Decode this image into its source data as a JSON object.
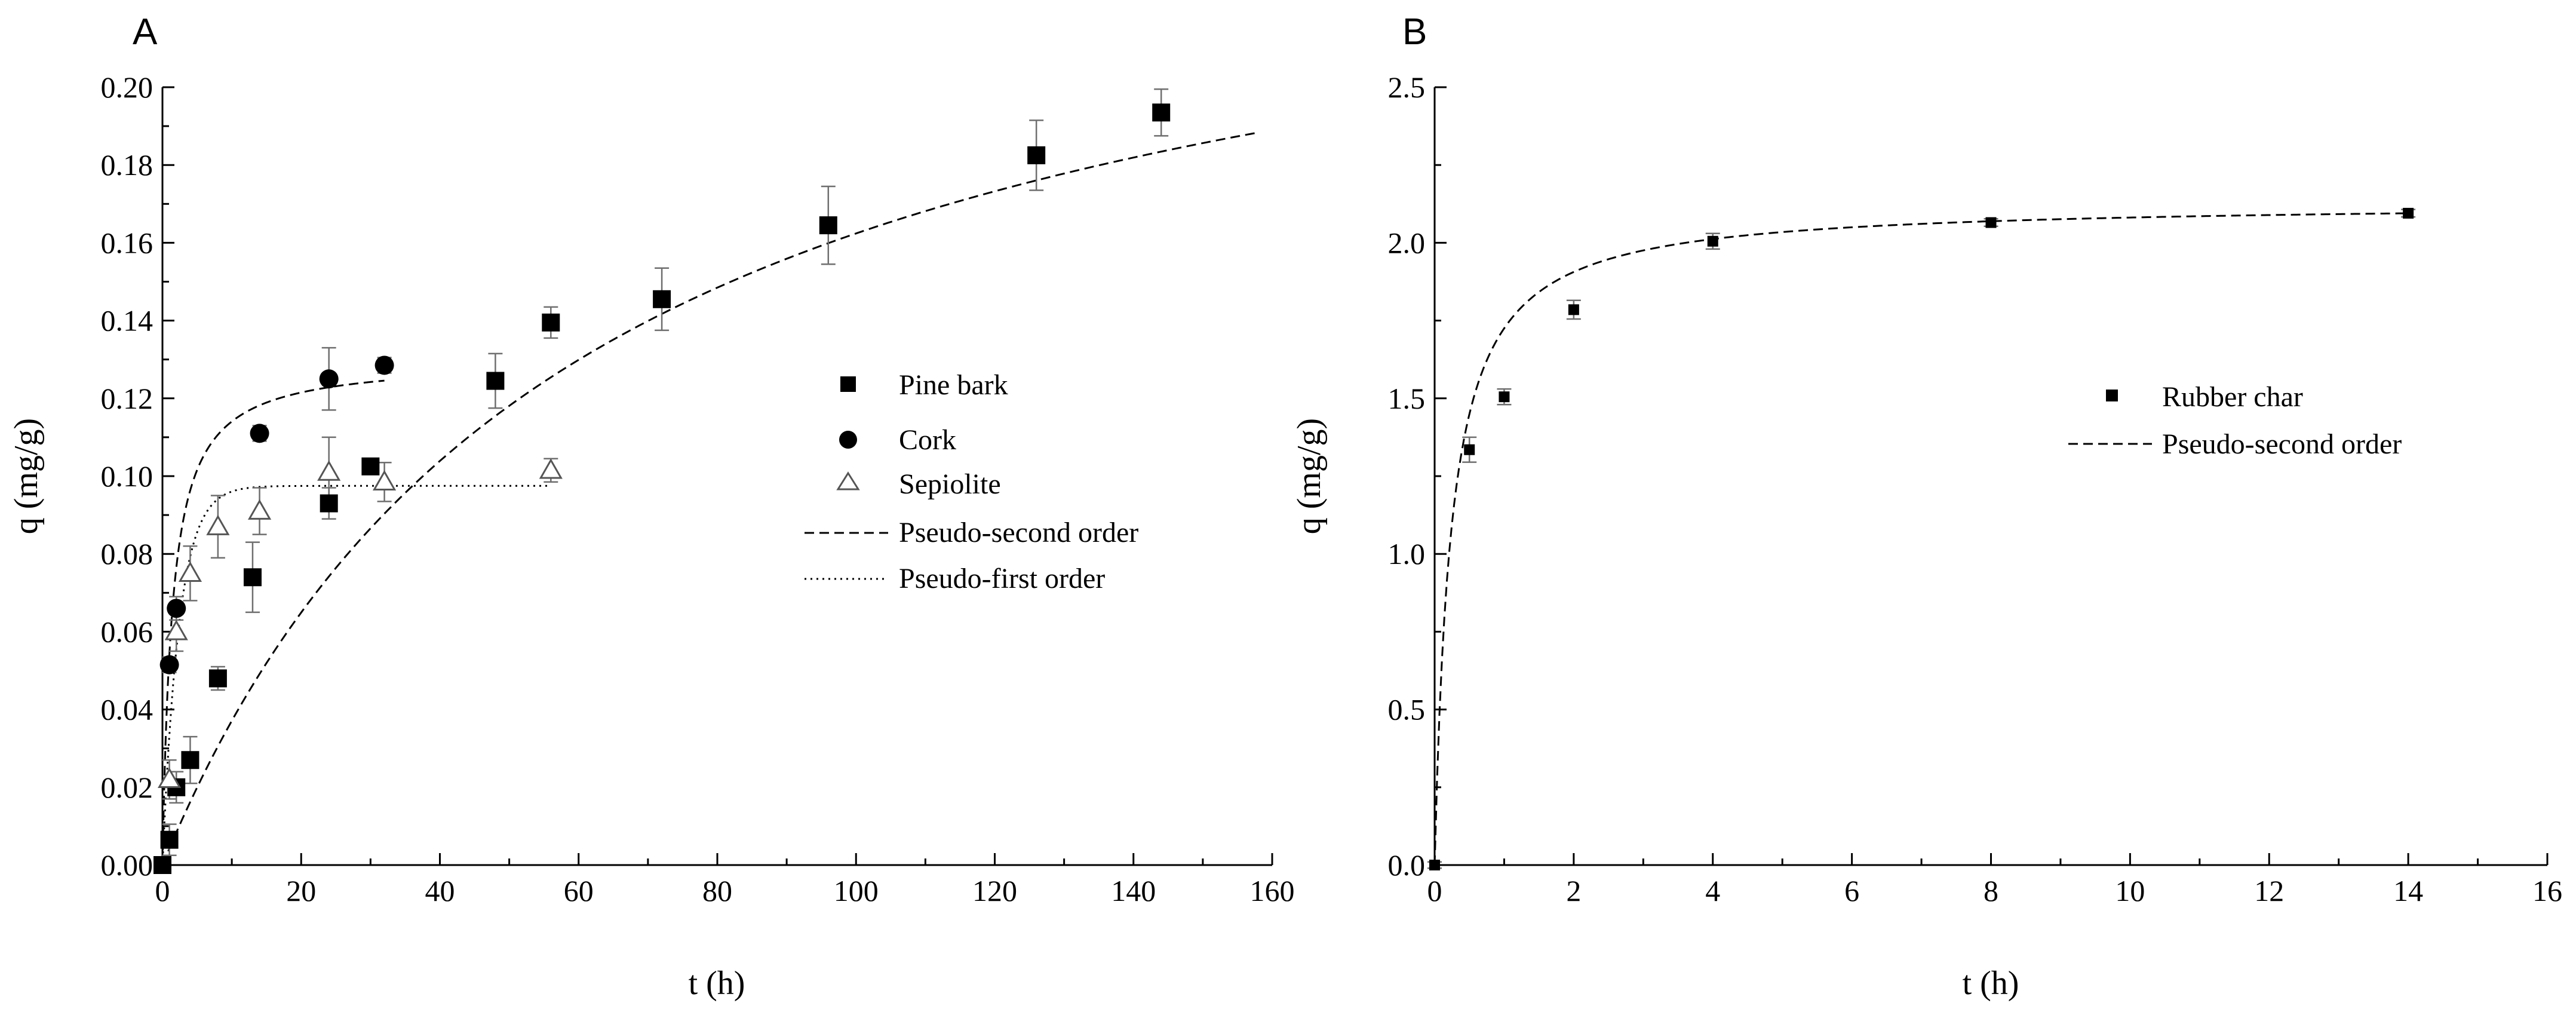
{
  "chart_data": [
    {
      "type": "scatter",
      "panel": "A",
      "xlabel": "t (h)",
      "ylabel": "q (mg/g)",
      "xlim": [
        0,
        160
      ],
      "ylim": [
        0,
        0.2
      ],
      "xticks": [
        0,
        20,
        40,
        60,
        80,
        100,
        120,
        140,
        160
      ],
      "yticks": [
        0.0,
        0.02,
        0.04,
        0.06,
        0.08,
        0.1,
        0.12,
        0.14,
        0.16,
        0.18,
        0.2
      ],
      "ytick_decimals": 2,
      "grid": false,
      "legend_position": "right-middle",
      "series": [
        {
          "name": "Pine bark",
          "marker": "square",
          "color": "#000000",
          "x": [
            0,
            1,
            2,
            4,
            8,
            13,
            24,
            30,
            48,
            56,
            72,
            96,
            126,
            144
          ],
          "y": [
            0.0,
            0.0065,
            0.02,
            0.027,
            0.048,
            0.074,
            0.093,
            0.1025,
            0.1245,
            0.1395,
            0.1455,
            0.1645,
            0.1825,
            0.1935
          ],
          "err": [
            0.001,
            0.004,
            0.004,
            0.006,
            0.003,
            0.009,
            0.004,
            0.002,
            0.007,
            0.004,
            0.008,
            0.01,
            0.009,
            0.006
          ]
        },
        {
          "name": "Cork",
          "marker": "circle",
          "color": "#000000",
          "x": [
            1,
            2,
            14,
            24,
            32
          ],
          "y": [
            0.0515,
            0.066,
            0.111,
            0.125,
            0.1285
          ],
          "err": [
            0.002,
            0.003,
            0.002,
            0.008,
            0.002
          ]
        },
        {
          "name": "Sepiolite",
          "marker": "triangle-open",
          "color": "#000000",
          "x": [
            1,
            2,
            4,
            8,
            14,
            24,
            32,
            56
          ],
          "y": [
            0.022,
            0.06,
            0.075,
            0.087,
            0.091,
            0.101,
            0.0985,
            0.1015
          ],
          "err": [
            0.005,
            0.005,
            0.007,
            0.008,
            0.006,
            0.009,
            0.005,
            0.003
          ]
        }
      ],
      "fits": [
        {
          "name": "Pseudo-second order",
          "style": "dashed",
          "applies_to": "Pine bark",
          "model": "pso",
          "qe": 0.26,
          "k": 0.064,
          "x_range": [
            0,
            158
          ]
        },
        {
          "name": "Pseudo-second order",
          "style": "dashed",
          "applies_to": "Cork",
          "model": "pso",
          "qe": 0.13,
          "k": 5.5,
          "x_range": [
            0,
            32
          ]
        },
        {
          "name": "Pseudo-first order",
          "style": "dotted",
          "applies_to": "Sepiolite",
          "model": "pfo",
          "qe": 0.0975,
          "k": 0.42,
          "x_range": [
            0,
            56
          ]
        }
      ],
      "legend": [
        {
          "label": "Pine bark",
          "symbol": "square"
        },
        {
          "label": "Cork",
          "symbol": "circle"
        },
        {
          "label": "Sepiolite",
          "symbol": "triangle-open"
        },
        {
          "label": "Pseudo-second order",
          "symbol": "dashed"
        },
        {
          "label": "Pseudo-first order",
          "symbol": "dotted"
        }
      ]
    },
    {
      "type": "scatter",
      "panel": "B",
      "xlabel": "t (h)",
      "ylabel": "q (mg/g)",
      "xlim": [
        0,
        16
      ],
      "ylim": [
        0,
        2.5
      ],
      "xticks": [
        0,
        2,
        4,
        6,
        8,
        10,
        12,
        14,
        16
      ],
      "yticks": [
        0.0,
        0.5,
        1.0,
        1.5,
        2.0,
        2.5
      ],
      "ytick_decimals": 1,
      "grid": false,
      "legend_position": "right-middle",
      "series": [
        {
          "name": "Rubber char",
          "marker": "square-small",
          "color": "#000000",
          "x": [
            0,
            0.5,
            1,
            2,
            4,
            8,
            14
          ],
          "y": [
            0.0,
            1.335,
            1.505,
            1.785,
            2.005,
            2.065,
            2.095
          ],
          "err": [
            0.01,
            0.04,
            0.025,
            0.03,
            0.025,
            0.012,
            0.012
          ]
        }
      ],
      "fits": [
        {
          "name": "Pseudo-second order",
          "style": "dashed",
          "applies_to": "Rubber char",
          "model": "pso",
          "qe": 2.13,
          "k": 2.0,
          "x_range": [
            0,
            14
          ]
        }
      ],
      "legend": [
        {
          "label": "Rubber char",
          "symbol": "square-small"
        },
        {
          "label": "Pseudo-second order",
          "symbol": "dashed"
        }
      ]
    }
  ]
}
